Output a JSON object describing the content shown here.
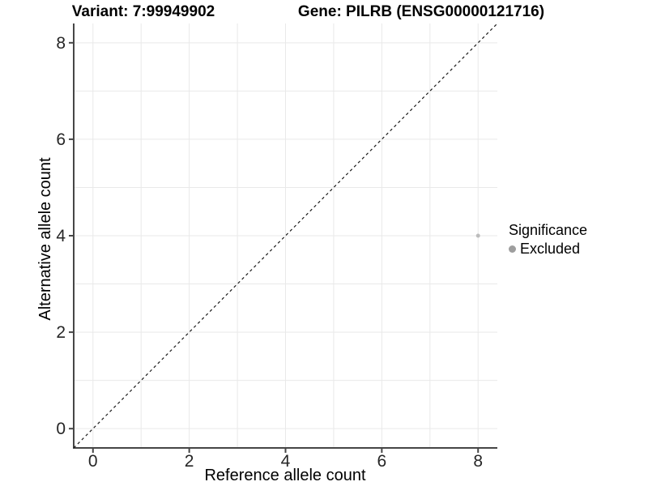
{
  "chart_data": {
    "type": "scatter",
    "titles": [
      "Variant: 7:99949902",
      "Gene: PILRB (ENSG00000121716)"
    ],
    "xlabel": "Reference allele count",
    "ylabel": "Alternative allele count",
    "xlim": [
      -0.4,
      8.4
    ],
    "ylim": [
      -0.4,
      8.4
    ],
    "x_ticks": [
      0,
      2,
      4,
      6,
      8
    ],
    "y_ticks": [
      0,
      2,
      4,
      6,
      8
    ],
    "x_minor_ticks": [
      1,
      3,
      5,
      7
    ],
    "y_minor_ticks": [
      1,
      3,
      5,
      7
    ],
    "grid": "on",
    "legend": {
      "title": "Significance",
      "position": "right",
      "items": [
        {
          "label": "Excluded",
          "key_color": "#9e9e9e"
        }
      ]
    },
    "series": [
      {
        "name": "Excluded",
        "color": "#bcbcbc",
        "marker": "circle",
        "points": [
          {
            "x": 8,
            "y": 4
          }
        ]
      }
    ],
    "annotations": [
      {
        "type": "identity-line",
        "equation": "y = x",
        "style": "dashed",
        "color": "#1a1a1a"
      }
    ],
    "style": {
      "background": "#ffffff",
      "axis_line_color": "#464646",
      "grid_color": "#e9e9e9",
      "tick_text_color": "#262626",
      "point_radius": 2.5
    }
  }
}
